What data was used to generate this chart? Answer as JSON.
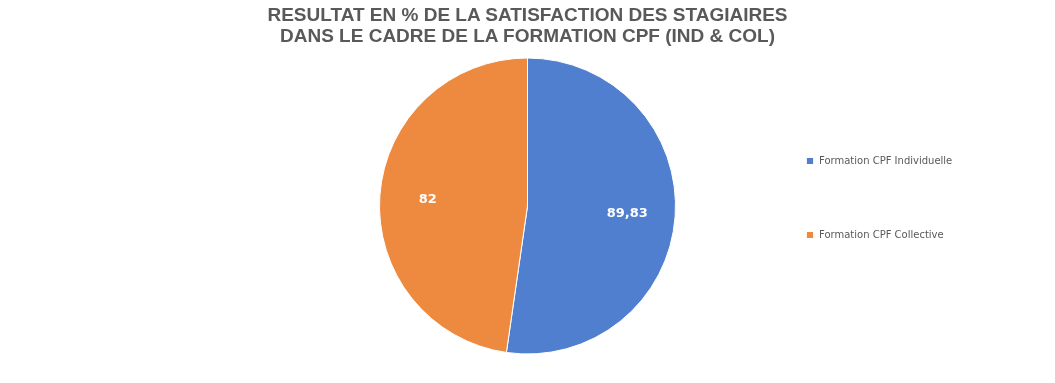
{
  "chart_data": {
    "type": "pie",
    "title": "RESULTAT EN % DE LA SATISFACTION DES STAGIAIRES\nDANS LE CADRE DE LA FORMATION CPF (IND & COL)",
    "categories": [
      "Formation CPF Individuelle",
      "Formation CPF Collective"
    ],
    "values": [
      89.83,
      82
    ],
    "colors": [
      "#4f7fce",
      "#ed8a3f"
    ],
    "value_labels": [
      "89,83",
      "82"
    ],
    "legend": "right"
  }
}
